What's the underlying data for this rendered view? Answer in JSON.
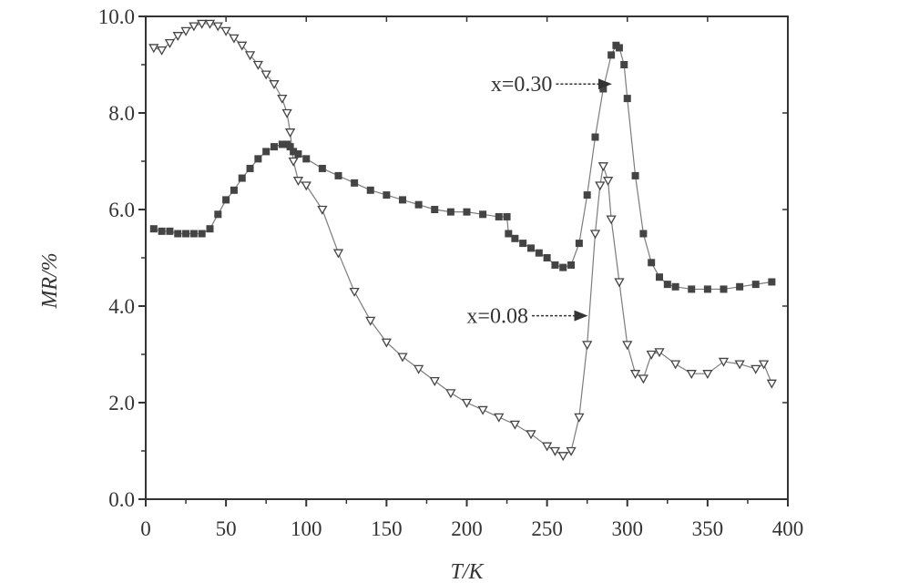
{
  "chart_data": {
    "type": "scatter",
    "title": "",
    "xlabel": "T/K",
    "ylabel": "MR/%",
    "xlim": [
      0,
      400
    ],
    "ylim": [
      0,
      10
    ],
    "x_ticks": [
      0,
      50,
      100,
      150,
      200,
      250,
      300,
      350,
      400
    ],
    "y_ticks": [
      0,
      2,
      4,
      6,
      8,
      10
    ],
    "x_tick_labels": [
      "0",
      "50",
      "100",
      "150",
      "200",
      "250",
      "300",
      "350",
      "400"
    ],
    "y_tick_labels": [
      "0.0",
      "2.0",
      "4.0",
      "6.0",
      "8.0",
      "10.0"
    ],
    "grid": false,
    "legend": "none",
    "series": [
      {
        "name": "x=0.30",
        "marker": "filled-square",
        "color": "#444444",
        "x": [
          5,
          10,
          15,
          20,
          25,
          30,
          35,
          40,
          45,
          50,
          55,
          60,
          65,
          70,
          75,
          80,
          85,
          88,
          90,
          92,
          95,
          100,
          110,
          120,
          130,
          140,
          150,
          160,
          170,
          180,
          190,
          200,
          210,
          220,
          225,
          226,
          230,
          235,
          240,
          245,
          250,
          255,
          260,
          265,
          270,
          275,
          280,
          285,
          290,
          293,
          295,
          298,
          300,
          305,
          310,
          315,
          320,
          325,
          330,
          340,
          350,
          360,
          370,
          380,
          390
        ],
        "y": [
          5.6,
          5.55,
          5.55,
          5.5,
          5.5,
          5.5,
          5.5,
          5.6,
          5.9,
          6.2,
          6.4,
          6.65,
          6.85,
          7.05,
          7.2,
          7.3,
          7.35,
          7.35,
          7.3,
          7.2,
          7.15,
          7.05,
          6.85,
          6.7,
          6.55,
          6.4,
          6.3,
          6.2,
          6.1,
          6.0,
          5.95,
          5.95,
          5.9,
          5.85,
          5.85,
          5.5,
          5.4,
          5.3,
          5.2,
          5.1,
          5.0,
          4.85,
          4.8,
          4.85,
          5.3,
          6.3,
          7.5,
          8.5,
          9.2,
          9.4,
          9.35,
          9.0,
          8.3,
          6.7,
          5.5,
          4.9,
          4.6,
          4.45,
          4.4,
          4.35,
          4.35,
          4.35,
          4.4,
          4.45,
          4.5
        ]
      },
      {
        "name": "x=0.08",
        "marker": "open-down-triangle",
        "color": "#444444",
        "x": [
          5,
          10,
          15,
          20,
          25,
          30,
          35,
          40,
          45,
          50,
          55,
          60,
          65,
          70,
          75,
          80,
          85,
          88,
          90,
          92,
          95,
          100,
          110,
          120,
          130,
          140,
          150,
          160,
          170,
          180,
          190,
          200,
          210,
          220,
          230,
          240,
          250,
          255,
          260,
          265,
          270,
          275,
          280,
          283,
          285,
          288,
          290,
          295,
          300,
          305,
          310,
          315,
          320,
          330,
          340,
          350,
          360,
          370,
          380,
          385,
          390
        ],
        "y": [
          9.35,
          9.3,
          9.45,
          9.6,
          9.7,
          9.8,
          9.85,
          9.85,
          9.8,
          9.7,
          9.55,
          9.4,
          9.2,
          9.0,
          8.8,
          8.6,
          8.3,
          8.0,
          7.6,
          7.0,
          6.6,
          6.5,
          6.0,
          5.1,
          4.3,
          3.7,
          3.25,
          2.95,
          2.7,
          2.45,
          2.2,
          2.0,
          1.85,
          1.7,
          1.55,
          1.35,
          1.1,
          1.0,
          0.9,
          1.0,
          1.7,
          3.2,
          5.5,
          6.5,
          6.9,
          6.6,
          5.8,
          4.5,
          3.2,
          2.6,
          2.5,
          3.0,
          3.05,
          2.8,
          2.6,
          2.6,
          2.85,
          2.8,
          2.7,
          2.8,
          2.4
        ]
      }
    ],
    "annotations": [
      {
        "text": "x=0.30",
        "points_to": [
          293,
          8.6
        ]
      },
      {
        "text": "x=0.08",
        "points_to": [
          278,
          3.8
        ]
      }
    ]
  }
}
